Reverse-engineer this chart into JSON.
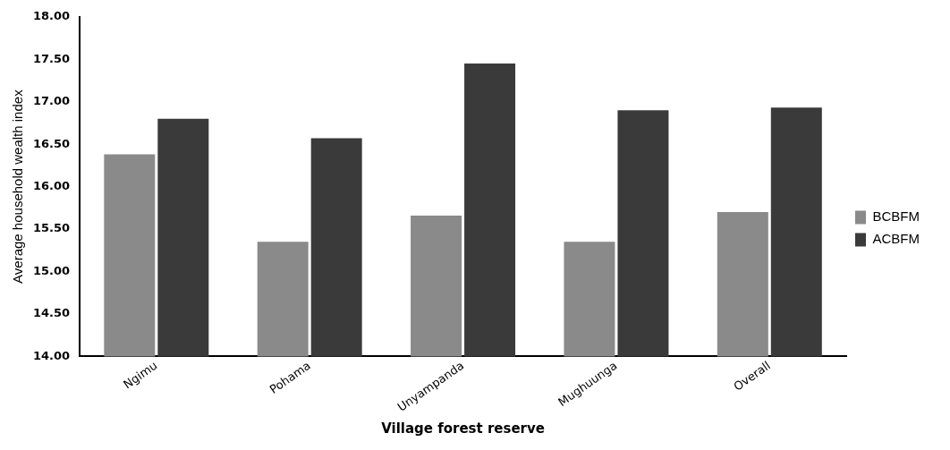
{
  "chart_data": {
    "type": "bar",
    "xlabel": "Village forest reserve",
    "ylabel": "Average household wealth index",
    "categories": [
      "Ngimu",
      "Pohama",
      "Unyampanda",
      "Mughuunga",
      "Overall"
    ],
    "series": [
      {
        "name": "BCBFM",
        "color": "#8a8a8a",
        "values": [
          16.38,
          15.35,
          15.66,
          15.35,
          15.7
        ]
      },
      {
        "name": "ACBFM",
        "color": "#3a3a3a",
        "values": [
          16.8,
          16.57,
          17.45,
          16.9,
          16.93
        ]
      }
    ],
    "ylim": [
      14,
      18
    ],
    "yticks": [
      {
        "value": 14,
        "label": "14.00"
      },
      {
        "value": 14.5,
        "label": "14.50"
      },
      {
        "value": 15,
        "label": "15.00"
      },
      {
        "value": 15.5,
        "label": "15.50"
      },
      {
        "value": 16,
        "label": "16.00"
      },
      {
        "value": 16.5,
        "label": "16.50"
      },
      {
        "value": 17,
        "label": "17.00"
      },
      {
        "value": 17.5,
        "label": "17.50"
      },
      {
        "value": 18,
        "label": "18.00"
      }
    ],
    "grid": false,
    "legend": "right"
  }
}
